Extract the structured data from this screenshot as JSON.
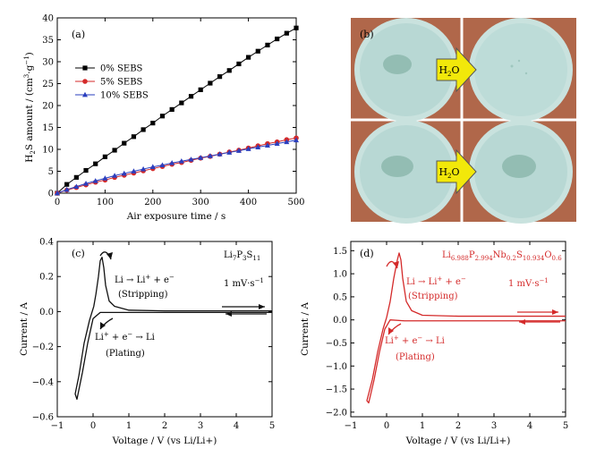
{
  "figure": {
    "panel_labels": [
      "(a)",
      "(b)",
      "(c)",
      "(d)"
    ]
  },
  "photo": {
    "h2o_label": "H",
    "h2o_sub": "2",
    "h2o_tail": "O",
    "bg_color": "#b0674a",
    "dish_color": "#b8d8d4",
    "arrow_color": "#f2e80a"
  },
  "chart_data": [
    {
      "type": "line",
      "panel": "(a)",
      "xlabel": "Air exposure time / s",
      "ylabel": "H2S amount / (cm3·g-1)",
      "ylabel_parts": {
        "a": "H",
        "a_sub": "2",
        "b": "S amount / (cm",
        "b_sup": "3",
        "c": "·g",
        "c_sup": "−1",
        "d": ")"
      },
      "xlim": [
        0,
        500
      ],
      "ylim": [
        0,
        40
      ],
      "xticks": [
        0,
        100,
        200,
        300,
        400,
        500
      ],
      "yticks": [
        0,
        5,
        10,
        15,
        20,
        25,
        30,
        35,
        40
      ],
      "legend_position": "upper-left",
      "x": [
        0,
        20,
        40,
        60,
        80,
        100,
        120,
        140,
        160,
        180,
        200,
        220,
        240,
        260,
        280,
        300,
        320,
        340,
        360,
        380,
        400,
        420,
        440,
        460,
        480,
        500
      ],
      "series": [
        {
          "name": "0% SEBS",
          "color": "#000000",
          "marker": "square",
          "values": [
            0,
            2.0,
            3.6,
            5.2,
            6.7,
            8.3,
            9.8,
            11.4,
            12.9,
            14.5,
            16.0,
            17.6,
            19.1,
            20.6,
            22.1,
            23.6,
            25.1,
            26.6,
            28.0,
            29.5,
            31.0,
            32.4,
            33.8,
            35.2,
            36.5,
            37.7
          ]
        },
        {
          "name": "5% SEBS",
          "color": "#d42a2a",
          "marker": "circle",
          "values": [
            0,
            0.7,
            1.3,
            1.9,
            2.5,
            3.0,
            3.6,
            4.1,
            4.6,
            5.1,
            5.6,
            6.1,
            6.6,
            7.0,
            7.5,
            8.0,
            8.4,
            8.9,
            9.4,
            9.8,
            10.3,
            10.8,
            11.3,
            11.7,
            12.2,
            12.6
          ]
        },
        {
          "name": "10% SEBS",
          "color": "#2a3fbf",
          "marker": "triangle",
          "values": [
            0,
            0.8,
            1.5,
            2.2,
            2.8,
            3.4,
            4.0,
            4.5,
            5.0,
            5.5,
            6.0,
            6.4,
            6.9,
            7.3,
            7.7,
            8.1,
            8.5,
            8.9,
            9.3,
            9.7,
            10.1,
            10.5,
            10.9,
            11.3,
            11.7,
            12.1
          ]
        }
      ]
    },
    {
      "type": "line",
      "panel": "(c)",
      "xlabel": "Voltage / V (vs Li/Li+)",
      "ylabel": "Current / A",
      "xlim": [
        -1,
        5
      ],
      "ylim": [
        -0.6,
        0.4
      ],
      "xticks": [
        -1,
        0,
        1,
        2,
        3,
        4,
        5
      ],
      "yticks": [
        -0.6,
        -0.4,
        -0.2,
        0.0,
        0.2,
        0.4
      ],
      "color": "#111111",
      "compound": {
        "base": "Li7P3S11",
        "parts": [
          [
            "Li",
            ""
          ],
          [
            "7",
            "sub"
          ],
          [
            "P",
            ""
          ],
          [
            "3",
            "sub"
          ],
          [
            "S",
            ""
          ],
          [
            "11",
            "sub"
          ]
        ]
      },
      "rate_label": "1 mV·s-1",
      "rate_parts": {
        "a": "1 mV·s",
        "sup": "−1"
      },
      "ann_strip": "Li → Li+ + e−",
      "ann_strip_parts": {
        "a": "Li → Li",
        "sup1": "+",
        "b": " + e",
        "sup2": "−"
      },
      "ann_stripping": "(Stripping)",
      "ann_plate": "Li+ + e− → Li",
      "ann_plate_parts": {
        "a": "Li",
        "sup1": "+",
        "b": " + e",
        "sup2": "−",
        "c": " → Li"
      },
      "ann_plating": "(Plating)",
      "curve": [
        [
          5.0,
          0.004
        ],
        [
          2.0,
          0.004
        ],
        [
          1.0,
          0.008
        ],
        [
          0.6,
          0.03
        ],
        [
          0.45,
          0.06
        ],
        [
          0.35,
          0.15
        ],
        [
          0.3,
          0.25
        ],
        [
          0.25,
          0.31
        ],
        [
          0.2,
          0.29
        ],
        [
          0.15,
          0.2
        ],
        [
          0.08,
          0.1
        ],
        [
          0.02,
          0.03
        ],
        [
          -0.1,
          -0.05
        ],
        [
          -0.25,
          -0.18
        ],
        [
          -0.4,
          -0.37
        ],
        [
          -0.5,
          -0.47
        ],
        [
          -0.45,
          -0.5
        ],
        [
          -0.3,
          -0.35
        ],
        [
          -0.15,
          -0.18
        ],
        [
          0.0,
          -0.04
        ],
        [
          0.2,
          -0.005
        ],
        [
          1.0,
          -0.005
        ],
        [
          5.0,
          -0.005
        ]
      ]
    },
    {
      "type": "line",
      "panel": "(d)",
      "xlabel": "Voltage / V (vs Li/Li+)",
      "ylabel": "Current / A",
      "xlim": [
        -1,
        5
      ],
      "ylim": [
        -2.1,
        1.7
      ],
      "xticks": [
        -1,
        0,
        1,
        2,
        3,
        4,
        5
      ],
      "yticks": [
        -2.0,
        -1.5,
        -1.0,
        -0.5,
        0.0,
        0.5,
        1.0,
        1.5
      ],
      "color": "#d42a2a",
      "compound": {
        "base": "Li6.988P2.994Nb0.2S10.934O0.6",
        "parts": [
          [
            "Li",
            ""
          ],
          [
            "6.988",
            "sub"
          ],
          [
            "P",
            ""
          ],
          [
            "2.994",
            "sub"
          ],
          [
            "Nb",
            ""
          ],
          [
            "0.2",
            "sub"
          ],
          [
            "S",
            ""
          ],
          [
            "10.934",
            "sub"
          ],
          [
            "O",
            ""
          ],
          [
            "0.6",
            "sub"
          ]
        ]
      },
      "rate_label": "1 mV·s-1",
      "rate_parts": {
        "a": "1 mV·s",
        "sup": "−1"
      },
      "ann_strip": "Li → Li+ + e−",
      "ann_strip_parts": {
        "a": "Li → Li",
        "sup1": "+",
        "b": " + e",
        "sup2": "−"
      },
      "ann_stripping": "(Stripping)",
      "ann_plate": "Li+ + e− → Li",
      "ann_plate_parts": {
        "a": "Li",
        "sup1": "+",
        "b": " + e",
        "sup2": "−",
        "c": " → Li"
      },
      "ann_plating": "(Plating)",
      "curve": [
        [
          5.0,
          0.08
        ],
        [
          2.0,
          0.08
        ],
        [
          1.0,
          0.1
        ],
        [
          0.7,
          0.2
        ],
        [
          0.55,
          0.4
        ],
        [
          0.45,
          0.9
        ],
        [
          0.4,
          1.3
        ],
        [
          0.35,
          1.45
        ],
        [
          0.3,
          1.3
        ],
        [
          0.2,
          0.9
        ],
        [
          0.1,
          0.4
        ],
        [
          0.0,
          0.05
        ],
        [
          -0.1,
          -0.2
        ],
        [
          -0.25,
          -0.7
        ],
        [
          -0.4,
          -1.3
        ],
        [
          -0.55,
          -1.75
        ],
        [
          -0.5,
          -1.8
        ],
        [
          -0.35,
          -1.3
        ],
        [
          -0.2,
          -0.7
        ],
        [
          -0.05,
          -0.2
        ],
        [
          0.1,
          0.0
        ],
        [
          0.5,
          -0.02
        ],
        [
          5.0,
          -0.02
        ]
      ]
    }
  ]
}
